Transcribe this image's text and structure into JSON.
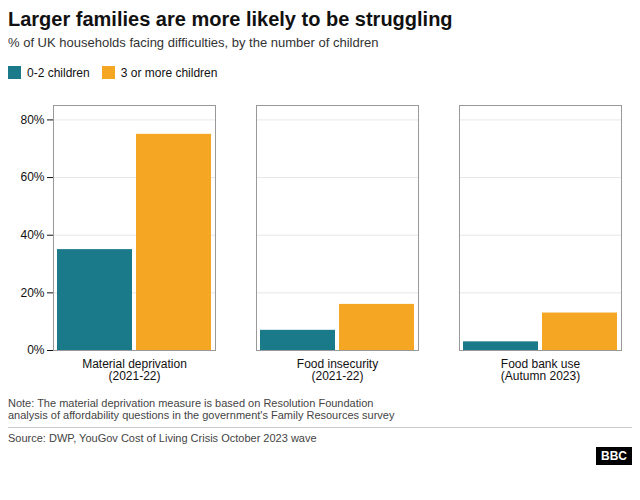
{
  "chart_data": {
    "type": "bar",
    "title": "Larger families are more likely to be struggling",
    "subtitle": "% of UK households facing difficulties, by the number of children",
    "categories": [
      "Material deprivation\n(2021-22)",
      "Food insecurity\n(2021-22)",
      "Food bank use\n(Autumn 2023)"
    ],
    "series": [
      {
        "name": "0-2 children",
        "color": "#1a7a8a",
        "values": [
          35,
          7,
          3
        ]
      },
      {
        "name": "3 or more children",
        "color": "#f5a623",
        "values": [
          75,
          16,
          13
        ]
      }
    ],
    "ylim": [
      0,
      85
    ],
    "yticks": [
      {
        "value": 0,
        "label": "0%"
      },
      {
        "value": 20,
        "label": "20%"
      },
      {
        "value": 40,
        "label": "40%"
      },
      {
        "value": 60,
        "label": "60%"
      },
      {
        "value": 80,
        "label": "80%"
      }
    ],
    "grid": true,
    "legend": "upper left",
    "note": "Note: The material deprivation measure is based on Resolution Foundation\nanalysis of affordability questions in the government's Family Resources survey",
    "source": "Source: DWP, YouGov Cost of Living Crisis October 2023 wave",
    "annotations": [
      "BBC"
    ]
  }
}
